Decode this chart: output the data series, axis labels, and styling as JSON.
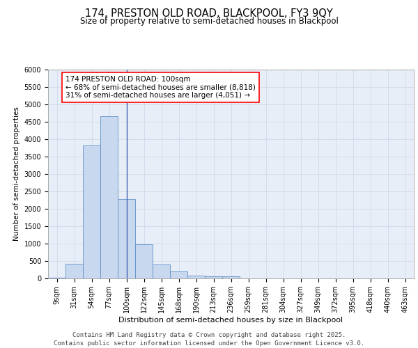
{
  "title_line1": "174, PRESTON OLD ROAD, BLACKPOOL, FY3 9QY",
  "title_line2": "Size of property relative to semi-detached houses in Blackpool",
  "xlabel": "Distribution of semi-detached houses by size in Blackpool",
  "ylabel": "Number of semi-detached properties",
  "categories": [
    "9sqm",
    "31sqm",
    "54sqm",
    "77sqm",
    "100sqm",
    "122sqm",
    "145sqm",
    "168sqm",
    "190sqm",
    "213sqm",
    "236sqm",
    "259sqm",
    "281sqm",
    "304sqm",
    "327sqm",
    "349sqm",
    "372sqm",
    "395sqm",
    "418sqm",
    "440sqm",
    "463sqm"
  ],
  "values": [
    30,
    430,
    3820,
    4670,
    2290,
    980,
    400,
    200,
    90,
    70,
    55,
    0,
    0,
    0,
    0,
    0,
    0,
    0,
    0,
    0,
    0
  ],
  "bar_color": "#c8d8ef",
  "bar_edge_color": "#6090c8",
  "highlight_index": 4,
  "highlight_line_color": "#4060b0",
  "annotation_text": "174 PRESTON OLD ROAD: 100sqm\n← 68% of semi-detached houses are smaller (8,818)\n31% of semi-detached houses are larger (4,051) →",
  "annotation_box_facecolor": "white",
  "annotation_box_edgecolor": "red",
  "ylim": [
    0,
    6000
  ],
  "yticks": [
    0,
    500,
    1000,
    1500,
    2000,
    2500,
    3000,
    3500,
    4000,
    4500,
    5000,
    5500,
    6000
  ],
  "grid_color": "#d0d8ec",
  "background_color": "#e8eef8",
  "footer_text": "Contains HM Land Registry data © Crown copyright and database right 2025.\nContains public sector information licensed under the Open Government Licence v3.0.",
  "title_fontsize": 10.5,
  "subtitle_fontsize": 8.5,
  "annotation_fontsize": 7.5,
  "footer_fontsize": 6.5,
  "xlabel_fontsize": 8,
  "ylabel_fontsize": 7.5,
  "tick_fontsize": 7
}
